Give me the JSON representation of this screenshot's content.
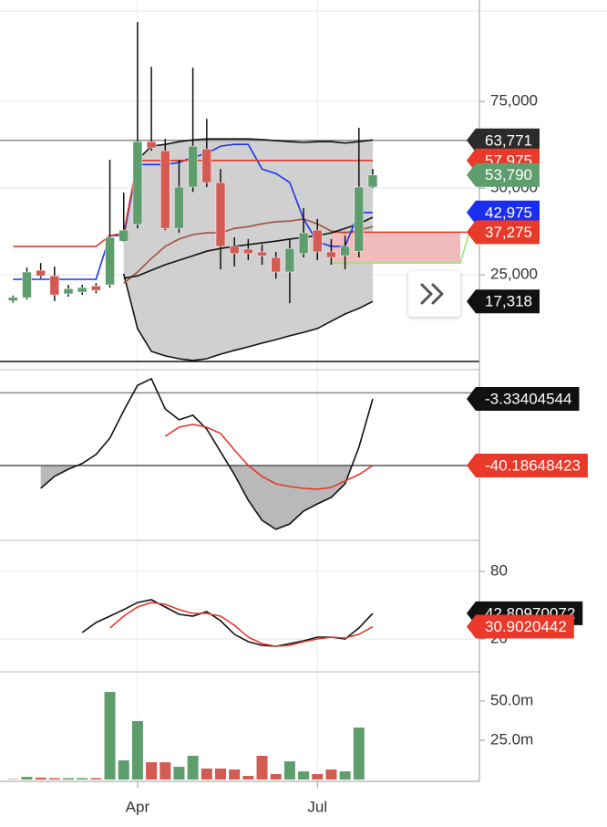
{
  "chart_data": [
    {
      "type": "candlestick",
      "categories": [
        null,
        null,
        null,
        null,
        null,
        null,
        null,
        null,
        null,
        "Apr",
        null,
        null,
        null,
        null,
        null,
        null,
        null,
        null,
        null,
        null,
        null,
        null,
        "Jul",
        null,
        null,
        null,
        null
      ],
      "open": [
        17500,
        18400,
        26300,
        24700,
        19500,
        20000,
        21800,
        22100,
        34700,
        39500,
        63400,
        60800,
        38400,
        50300,
        61300,
        51600,
        33200,
        32400,
        31600,
        30000,
        25800,
        31100,
        37900,
        31600,
        30500,
        31800,
        50300
      ],
      "high": [
        19000,
        27100,
        28400,
        27400,
        22100,
        22100,
        22600,
        58200,
        48700,
        97900,
        85000,
        64200,
        58200,
        84700,
        70000,
        55500,
        35800,
        35300,
        33700,
        31600,
        35300,
        44200,
        41100,
        35300,
        36300,
        67400,
        55500
      ],
      "low": [
        17000,
        17900,
        24000,
        17400,
        18700,
        19200,
        19700,
        21300,
        34500,
        38400,
        60800,
        37900,
        37100,
        48900,
        50300,
        26600,
        27400,
        29200,
        27900,
        23900,
        16800,
        30000,
        29200,
        27900,
        26600,
        30000,
        50000
      ],
      "close": [
        18500,
        25800,
        24700,
        19200,
        21000,
        21300,
        20500,
        35800,
        37900,
        63400,
        61600,
        38400,
        50300,
        62100,
        51600,
        33200,
        31100,
        31100,
        30500,
        25800,
        32600,
        37100,
        31600,
        30000,
        33200,
        50300,
        53790
      ],
      "up_color": "#5e9e6c",
      "down_color": "#d45b52",
      "ylim": [
        0,
        104000
      ],
      "yticks": [
        {
          "value": 25000,
          "label": "25,000"
        },
        {
          "value": 50000,
          "label": "50,000"
        },
        {
          "value": 75000,
          "label": "75,000"
        }
      ],
      "grid": true,
      "bands": {
        "color": "#cbcbcb",
        "upper": [
          null,
          null,
          null,
          null,
          null,
          null,
          null,
          null,
          35800,
          58200,
          62100,
          62600,
          63400,
          63900,
          64200,
          64200,
          64200,
          64200,
          64000,
          63700,
          63400,
          63200,
          63400,
          63400,
          63000,
          63400,
          63900
        ],
        "lower": [
          null,
          null,
          null,
          null,
          null,
          null,
          null,
          null,
          25300,
          9500,
          2900,
          1600,
          800,
          300,
          800,
          2100,
          3200,
          4200,
          5300,
          6300,
          7400,
          8400,
          9500,
          11600,
          13700,
          15300,
          17318
        ]
      },
      "series": [
        {
          "color": "#a0523d",
          "values": [
            null,
            null,
            null,
            null,
            null,
            null,
            null,
            null,
            22600,
            25800,
            29700,
            33200,
            35300,
            36600,
            37100,
            37100,
            38400,
            38900,
            39700,
            40300,
            40500,
            41100,
            39700,
            37600,
            37100,
            37900,
            38900
          ]
        },
        {
          "color": "#111111",
          "values": [
            null,
            null,
            null,
            null,
            null,
            null,
            null,
            null,
            24000,
            24700,
            26300,
            27900,
            29200,
            30500,
            31800,
            32600,
            33200,
            33700,
            34200,
            34700,
            35300,
            35800,
            36300,
            37100,
            38400,
            39700,
            41600
          ]
        },
        {
          "color": "#1a35e8",
          "values": [
            23700,
            23700,
            23700,
            23700,
            23700,
            23700,
            23700,
            36300,
            36300,
            56800,
            56800,
            56800,
            57400,
            58900,
            60000,
            62100,
            62600,
            62600,
            55500,
            54200,
            51600,
            41100,
            34500,
            33200,
            33200,
            42975,
            42975
          ]
        },
        {
          "color": "#e03a2a",
          "values": [
            33200,
            33200,
            33200,
            33200,
            33200,
            33200,
            33200,
            36300,
            37000,
            57975,
            57975,
            57975,
            57975,
            57975,
            57975,
            57975,
            57975,
            57975,
            57975,
            57975,
            57975,
            57975,
            57975,
            57975,
            57975,
            57975,
            57975
          ]
        }
      ],
      "cloud": {
        "top": 37275,
        "bottom": 28400,
        "fill": "#f2bcbc",
        "top_color": "#e8392b",
        "bottom_color": "#8fe86f"
      },
      "reference_lines": [
        {
          "value": 63771,
          "color": "#8a8a8a"
        },
        {
          "value": 0,
          "color": "#111111"
        }
      ],
      "price_labels": [
        {
          "value": 63771,
          "label": "63,771",
          "color": "#2b2b2b"
        },
        {
          "value": 57975,
          "label": "57,975",
          "color": "#e8392b"
        },
        {
          "value": 53790,
          "label": "53,790",
          "color": "#5e9e6c"
        },
        {
          "value": 42975,
          "label": "42,975",
          "color": "#1a2ef0"
        },
        {
          "value": 37275,
          "label": "37,275",
          "color": "#e8392b"
        },
        {
          "value": 17318,
          "label": "17,318",
          "color": "#111111"
        }
      ]
    },
    {
      "type": "line",
      "ylim": [
        -81.6,
        11.3
      ],
      "fill": {
        "level": -40.18648423,
        "color": "#b9b9b9"
      },
      "series": [
        {
          "color": "#111111",
          "values": [
            null,
            null,
            -52.8,
            -46.2,
            -42.2,
            -39.1,
            -34.1,
            -25.0,
            -9.9,
            4.2,
            7.8,
            -8.9,
            -14.9,
            -12.4,
            -20.0,
            -32.6,
            -45.2,
            -59.4,
            -70.5,
            -75.5,
            -72.5,
            -65.4,
            -61.4,
            -57.8,
            -50.3,
            -30.1,
            -3.33404544
          ]
        },
        {
          "color": "#e03a2a",
          "values": [
            null,
            null,
            null,
            null,
            null,
            null,
            null,
            null,
            null,
            null,
            null,
            -24.0,
            -19.0,
            -17.5,
            -19.0,
            -22.5,
            -31.6,
            -40.2,
            -46.2,
            -50.3,
            -51.8,
            -52.8,
            -53.3,
            -52.3,
            -48.8,
            -45.2,
            -40.18648423
          ]
        }
      ],
      "reference_lines": [
        {
          "value": 0,
          "color": "#8a8a8a"
        },
        {
          "value": -40.18648423,
          "color": "#555555"
        }
      ],
      "price_labels": [
        {
          "value": -3.33404544,
          "label": "-3.33404544",
          "color": "#111111"
        },
        {
          "value": -40.18648423,
          "label": "-40.18648423",
          "color": "#e8392b"
        }
      ]
    },
    {
      "type": "line",
      "ylim": [
        -9.2,
        107.6
      ],
      "yticks": [
        20,
        80
      ],
      "grid": true,
      "series": [
        {
          "color": "#111111",
          "values": [
            null,
            null,
            null,
            null,
            null,
            25.7,
            34.6,
            40.3,
            46.0,
            52.4,
            54.9,
            48.4,
            41.9,
            40.3,
            44.3,
            36.2,
            24.1,
            17.6,
            14.3,
            13.5,
            15.9,
            18.4,
            21.6,
            21.6,
            20.0,
            29.7,
            42.80970072
          ]
        },
        {
          "color": "#e03a2a",
          "values": [
            null,
            null,
            null,
            null,
            null,
            null,
            null,
            29.7,
            40.3,
            48.4,
            52.4,
            50.8,
            46.0,
            42.7,
            42.7,
            40.3,
            32.2,
            21.6,
            15.9,
            13.5,
            14.3,
            17.6,
            20.0,
            21.6,
            20.8,
            24.1,
            30.9020442
          ]
        }
      ],
      "price_labels": [
        {
          "value": 42.80970072,
          "label": "42.80970072",
          "color": "#111111"
        },
        {
          "value": 30.9020442,
          "label": "30.9020442",
          "color": "#e8392b"
        }
      ]
    },
    {
      "type": "bar",
      "ylim": [
        0,
        68600000
      ],
      "yticks": [
        {
          "value": 25000000,
          "label": "25.0m"
        },
        {
          "value": 50000000,
          "label": "50.0m"
        }
      ],
      "grid": false,
      "values": [
        300000,
        1700000,
        1200000,
        900000,
        900000,
        900000,
        900000,
        55800000,
        12200000,
        37200000,
        11000000,
        11000000,
        8100000,
        15100000,
        7000000,
        7000000,
        6400000,
        2300000,
        15100000,
        3500000,
        11600000,
        5200000,
        3500000,
        6400000,
        5200000,
        33100000,
        null
      ]
    }
  ]
}
